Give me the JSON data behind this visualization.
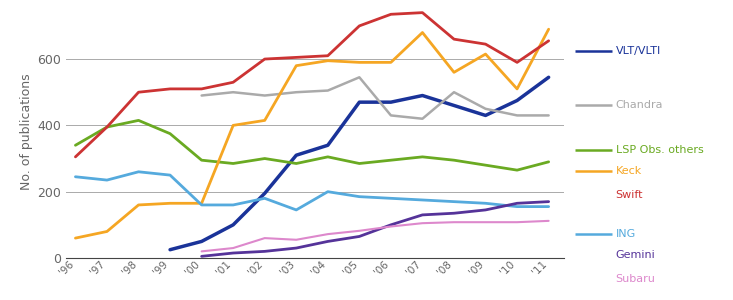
{
  "years": [
    1996,
    1997,
    1998,
    1999,
    2000,
    2001,
    2002,
    2003,
    2004,
    2005,
    2006,
    2007,
    2008,
    2009,
    2010,
    2011
  ],
  "series": [
    {
      "name": "VLT/VLTI",
      "color": "#1a3399",
      "lw": 2.5,
      "values": [
        null,
        null,
        null,
        25,
        50,
        100,
        195,
        310,
        340,
        470,
        470,
        490,
        460,
        430,
        475,
        545
      ]
    },
    {
      "name": "Chandra",
      "color": "#aaaaaa",
      "lw": 1.8,
      "values": [
        null,
        null,
        null,
        null,
        490,
        500,
        490,
        500,
        505,
        545,
        430,
        420,
        500,
        450,
        430,
        430
      ]
    },
    {
      "name": "LSP Obs. others",
      "color": "#6aaa22",
      "lw": 2.0,
      "values": [
        340,
        395,
        415,
        375,
        295,
        285,
        300,
        285,
        305,
        285,
        295,
        305,
        295,
        280,
        265,
        290
      ]
    },
    {
      "name": "Keck",
      "color": "#f5a623",
      "lw": 2.0,
      "values": [
        60,
        80,
        160,
        165,
        165,
        400,
        415,
        580,
        595,
        590,
        590,
        680,
        560,
        615,
        510,
        690
      ]
    },
    {
      "name": "Swift",
      "color": "#cc3333",
      "lw": 2.0,
      "values": [
        305,
        395,
        500,
        510,
        510,
        530,
        600,
        605,
        610,
        700,
        735,
        740,
        660,
        645,
        590,
        655
      ]
    },
    {
      "name": "ING",
      "color": "#55aadd",
      "lw": 2.0,
      "values": [
        245,
        235,
        260,
        250,
        160,
        160,
        180,
        145,
        200,
        185,
        180,
        175,
        170,
        165,
        155,
        155
      ]
    },
    {
      "name": "Gemini",
      "color": "#553399",
      "lw": 2.0,
      "values": [
        null,
        null,
        null,
        null,
        5,
        15,
        20,
        30,
        50,
        65,
        100,
        130,
        135,
        145,
        165,
        170
      ]
    },
    {
      "name": "Subaru",
      "color": "#dd88cc",
      "lw": 1.5,
      "values": [
        null,
        null,
        null,
        null,
        20,
        30,
        60,
        55,
        72,
        82,
        95,
        105,
        108,
        108,
        108,
        112
      ]
    }
  ],
  "ylabel": "No. of publications",
  "ylim": [
    0,
    760
  ],
  "yticks": [
    0,
    200,
    400,
    600
  ],
  "background_color": "#ffffff",
  "grid_color": "#aaaaaa",
  "tick_label_color": "#666666",
  "legend": [
    {
      "name": "VLT/VLTI",
      "color": "#1a3399",
      "show_line": true
    },
    {
      "name": "Chandra",
      "color": "#aaaaaa",
      "show_line": true
    },
    {
      "name": "LSP Obs. others",
      "color": "#6aaa22",
      "show_line": true
    },
    {
      "name": "Keck",
      "color": "#f5a623",
      "show_line": true
    },
    {
      "name": "Swift",
      "color": "#cc3333",
      "show_line": false
    },
    {
      "name": "ING",
      "color": "#55aadd",
      "show_line": true
    },
    {
      "name": "Gemini",
      "color": "#553399",
      "show_line": false
    },
    {
      "name": "Subaru",
      "color": "#dd88cc",
      "show_line": false
    }
  ]
}
